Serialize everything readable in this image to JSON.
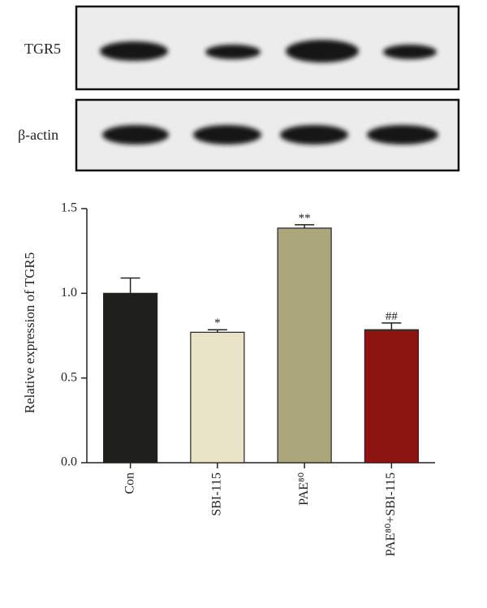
{
  "blot": {
    "rows": [
      {
        "label": "TGR5"
      },
      {
        "label": "β-actin"
      }
    ]
  },
  "chart_data": {
    "type": "bar",
    "ylabel": "Relative expression of TGR5",
    "categories": [
      "Con",
      "SBI-115",
      "PAE⁸⁰",
      "PAE⁸⁰+SBI-115"
    ],
    "values": [
      1.0,
      0.77,
      1.385,
      0.785
    ],
    "errors": [
      0.09,
      0.015,
      0.02,
      0.04
    ],
    "annotations": [
      null,
      "*",
      "**",
      "##"
    ],
    "colors": [
      "#1f1f1d",
      "#e9e4c8",
      "#aca77a",
      "#8c1510"
    ],
    "ylim": [
      0,
      1.5
    ],
    "yticks": [
      {
        "value": 0,
        "label": "0.0"
      },
      {
        "value": 0.5,
        "label": "0.5"
      },
      {
        "value": 1,
        "label": "1.0"
      },
      {
        "value": 1.5,
        "label": "1.5"
      }
    ]
  }
}
